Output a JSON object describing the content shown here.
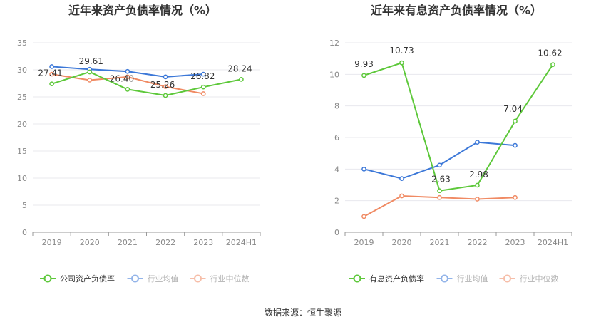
{
  "source_label": "数据来源：恒生聚源",
  "colors": {
    "company": "#5dc83a",
    "industry_avg": "#3c78d8",
    "industry_median": "#f08a63",
    "axis": "#888888",
    "grid": "#e8e8ee",
    "title": "#333333"
  },
  "chart_data": [
    {
      "type": "line",
      "title": "近年来资产负债率情况（%）",
      "categories": [
        "2019",
        "2020",
        "2021",
        "2022",
        "2023",
        "2024H1"
      ],
      "ylim": [
        0,
        35
      ],
      "yticks": [
        0,
        5,
        10,
        15,
        20,
        25,
        30,
        35
      ],
      "grid": true,
      "legend_position": "bottom",
      "series": [
        {
          "name": "公司资产负债率",
          "key": "company",
          "values": [
            27.41,
            29.61,
            26.4,
            25.26,
            26.82,
            28.24
          ],
          "labels": [
            "27.41",
            "29.61",
            "26.40",
            "25.26",
            "26.82",
            "28.24"
          ]
        },
        {
          "name": "行业均值",
          "key": "industry_avg",
          "values": [
            30.6,
            30.1,
            29.7,
            28.7,
            29.2,
            null
          ]
        },
        {
          "name": "行业中位数",
          "key": "industry_median",
          "values": [
            29.2,
            28.1,
            28.7,
            26.9,
            25.6,
            null
          ]
        }
      ]
    },
    {
      "type": "line",
      "title": "近年来有息资产负债率情况（%）",
      "categories": [
        "2019",
        "2020",
        "2021",
        "2022",
        "2023",
        "2024H1"
      ],
      "ylim": [
        0,
        12
      ],
      "yticks": [
        0,
        2,
        4,
        6,
        8,
        10,
        12
      ],
      "grid": true,
      "legend_position": "bottom",
      "series": [
        {
          "name": "有息资产负债率",
          "key": "company",
          "values": [
            9.93,
            10.73,
            2.63,
            2.98,
            7.04,
            10.62
          ],
          "labels": [
            "9.93",
            "10.73",
            "2.63",
            "2.98",
            "7.04",
            "10.62"
          ]
        },
        {
          "name": "行业均值",
          "key": "industry_avg",
          "values": [
            4.0,
            3.4,
            4.25,
            5.7,
            5.5,
            null
          ]
        },
        {
          "name": "行业中位数",
          "key": "industry_median",
          "values": [
            1.0,
            2.3,
            2.2,
            2.1,
            2.2,
            null
          ]
        }
      ]
    }
  ]
}
